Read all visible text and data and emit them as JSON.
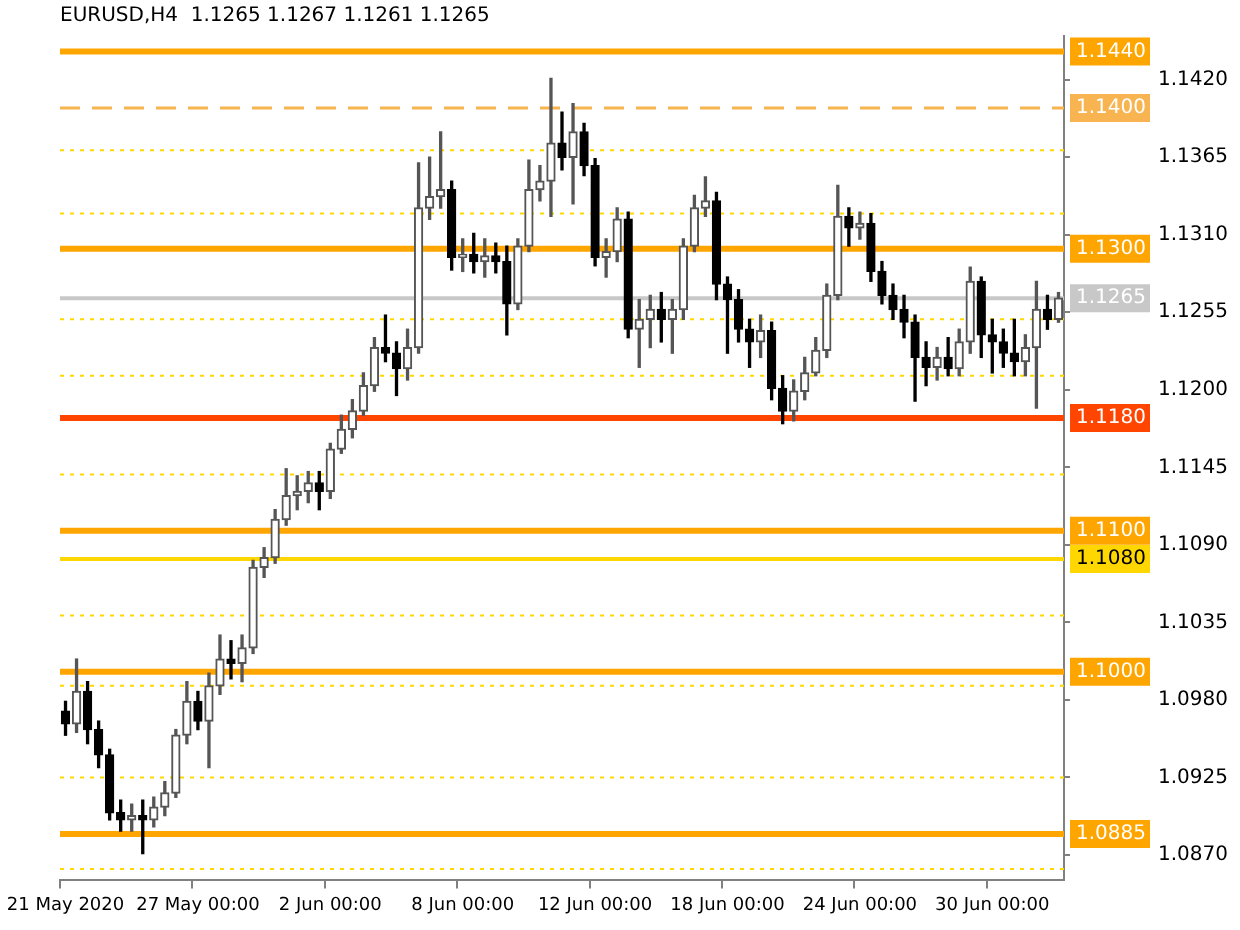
{
  "chart_data": {
    "type": "candlestick",
    "title": "EURUSD,H4  1.1265 1.1267 1.1261 1.1265",
    "categories": [
      "21 May 2020",
      null,
      null,
      null,
      null,
      null,
      null,
      null,
      null,
      null,
      null,
      null,
      "27 May 00:00",
      null,
      null,
      null,
      null,
      null,
      null,
      null,
      null,
      null,
      null,
      null,
      "2 Jun 00:00",
      null,
      null,
      null,
      null,
      null,
      null,
      null,
      null,
      null,
      null,
      null,
      "8 Jun 00:00",
      null,
      null,
      null,
      null,
      null,
      null,
      null,
      null,
      null,
      null,
      null,
      "12 Jun 00:00",
      null,
      null,
      null,
      null,
      null,
      null,
      null,
      null,
      null,
      null,
      null,
      "18 Jun 00:00",
      null,
      null,
      null,
      null,
      null,
      null,
      null,
      null,
      null,
      null,
      null,
      "24 Jun 00:00",
      null,
      null,
      null,
      null,
      null,
      null,
      null,
      null,
      null,
      null,
      null,
      "30 Jun 00:00",
      null,
      null,
      null,
      null,
      null,
      null
    ],
    "ohlc": [
      [
        1.0972,
        1.0979,
        1.0955,
        1.0963
      ],
      [
        1.0963,
        1.1009,
        1.0957,
        1.0986
      ],
      [
        1.0986,
        1.0993,
        1.0949,
        1.0959
      ],
      [
        1.0959,
        1.0965,
        1.0932,
        1.0941
      ],
      [
        1.0941,
        1.0945,
        1.0895,
        1.09
      ],
      [
        1.09,
        1.0909,
        1.0887,
        1.0895
      ],
      [
        1.0895,
        1.0906,
        1.0887,
        1.0898
      ],
      [
        1.0898,
        1.0909,
        1.0871,
        1.0895
      ],
      [
        1.0895,
        1.0911,
        1.089,
        1.0904
      ],
      [
        1.0904,
        1.0922,
        1.0898,
        1.0914
      ],
      [
        1.0914,
        1.0959,
        1.0911,
        1.0955
      ],
      [
        1.0955,
        1.0993,
        1.0949,
        1.0979
      ],
      [
        1.0979,
        1.0986,
        1.0959,
        1.0965
      ],
      [
        1.0965,
        1.0999,
        1.0932,
        1.099
      ],
      [
        1.099,
        1.1026,
        1.0984,
        1.1009
      ],
      [
        1.1009,
        1.1022,
        1.0995,
        1.1006
      ],
      [
        1.1006,
        1.1026,
        1.0993,
        1.1017
      ],
      [
        1.1017,
        1.1079,
        1.1013,
        1.1074
      ],
      [
        1.1074,
        1.1088,
        1.1067,
        1.1081
      ],
      [
        1.1081,
        1.1115,
        1.1077,
        1.1108
      ],
      [
        1.1108,
        1.1144,
        1.1104,
        1.1125
      ],
      [
        1.1125,
        1.1139,
        1.1115,
        1.1128
      ],
      [
        1.1128,
        1.1142,
        1.112,
        1.1134
      ],
      [
        1.1134,
        1.1142,
        1.1115,
        1.1128
      ],
      [
        1.1128,
        1.1162,
        1.1123,
        1.1158
      ],
      [
        1.1158,
        1.1182,
        1.1155,
        1.1172
      ],
      [
        1.1172,
        1.1193,
        1.1166,
        1.1185
      ],
      [
        1.1185,
        1.1212,
        1.1182,
        1.1203
      ],
      [
        1.1203,
        1.1237,
        1.1199,
        1.123
      ],
      [
        1.123,
        1.1253,
        1.122,
        1.1226
      ],
      [
        1.1226,
        1.1234,
        1.1196,
        1.1215
      ],
      [
        1.1215,
        1.1243,
        1.1207,
        1.123
      ],
      [
        1.123,
        1.1361,
        1.1226,
        1.1329
      ],
      [
        1.1329,
        1.1365,
        1.1321,
        1.1337
      ],
      [
        1.1337,
        1.1383,
        1.1329,
        1.1342
      ],
      [
        1.1342,
        1.1348,
        1.1285,
        1.1294
      ],
      [
        1.1294,
        1.1307,
        1.1284,
        1.1296
      ],
      [
        1.1296,
        1.1311,
        1.1283,
        1.1291
      ],
      [
        1.1291,
        1.1307,
        1.128,
        1.1295
      ],
      [
        1.1295,
        1.1304,
        1.1283,
        1.1291
      ],
      [
        1.1291,
        1.1302,
        1.1239,
        1.1261
      ],
      [
        1.1261,
        1.1307,
        1.1257,
        1.1302
      ],
      [
        1.1302,
        1.1363,
        1.1298,
        1.1342
      ],
      [
        1.1342,
        1.1359,
        1.1334,
        1.1348
      ],
      [
        1.1348,
        1.1421,
        1.1323,
        1.1375
      ],
      [
        1.1375,
        1.1397,
        1.1356,
        1.1365
      ],
      [
        1.1365,
        1.1403,
        1.1332,
        1.1383
      ],
      [
        1.1383,
        1.1389,
        1.1352,
        1.1359
      ],
      [
        1.1359,
        1.1364,
        1.1288,
        1.1294
      ],
      [
        1.1294,
        1.1307,
        1.128,
        1.1298
      ],
      [
        1.1298,
        1.1329,
        1.1291,
        1.1321
      ],
      [
        1.1321,
        1.1326,
        1.1237,
        1.1243
      ],
      [
        1.1243,
        1.1264,
        1.1216,
        1.125
      ],
      [
        1.125,
        1.1267,
        1.123,
        1.1257
      ],
      [
        1.1257,
        1.1269,
        1.1234,
        1.125
      ],
      [
        1.125,
        1.1264,
        1.1226,
        1.1257
      ],
      [
        1.1257,
        1.1307,
        1.125,
        1.1302
      ],
      [
        1.1302,
        1.1338,
        1.1298,
        1.1329
      ],
      [
        1.1329,
        1.1351,
        1.1323,
        1.1334
      ],
      [
        1.1334,
        1.134,
        1.1264,
        1.1275
      ],
      [
        1.1275,
        1.128,
        1.1226,
        1.1264
      ],
      [
        1.1264,
        1.1271,
        1.1234,
        1.1243
      ],
      [
        1.1243,
        1.125,
        1.1216,
        1.1234
      ],
      [
        1.1234,
        1.1253,
        1.1223,
        1.1242
      ],
      [
        1.1242,
        1.1248,
        1.1193,
        1.1201
      ],
      [
        1.1201,
        1.121,
        1.1176,
        1.1185
      ],
      [
        1.1185,
        1.1207,
        1.1178,
        1.1199
      ],
      [
        1.1199,
        1.1223,
        1.1193,
        1.1212
      ],
      [
        1.1212,
        1.1237,
        1.121,
        1.1228
      ],
      [
        1.1228,
        1.1275,
        1.1223,
        1.1267
      ],
      [
        1.1267,
        1.1345,
        1.1264,
        1.1323
      ],
      [
        1.1323,
        1.1329,
        1.1302,
        1.1315
      ],
      [
        1.1315,
        1.1326,
        1.1307,
        1.1318
      ],
      [
        1.1318,
        1.1325,
        1.1277,
        1.1284
      ],
      [
        1.1284,
        1.1291,
        1.1261,
        1.1267
      ],
      [
        1.1267,
        1.1275,
        1.125,
        1.1257
      ],
      [
        1.1257,
        1.1267,
        1.1237,
        1.1248
      ],
      [
        1.1248,
        1.1253,
        1.1192,
        1.1223
      ],
      [
        1.1223,
        1.1234,
        1.1203,
        1.1216
      ],
      [
        1.1216,
        1.123,
        1.1207,
        1.1223
      ],
      [
        1.1223,
        1.1237,
        1.121,
        1.1215
      ],
      [
        1.1215,
        1.1243,
        1.121,
        1.1234
      ],
      [
        1.1234,
        1.1287,
        1.1226,
        1.1277
      ],
      [
        1.1277,
        1.128,
        1.1223,
        1.1239
      ],
      [
        1.1239,
        1.125,
        1.1212,
        1.1234
      ],
      [
        1.1234,
        1.1243,
        1.1216,
        1.1226
      ],
      [
        1.1226,
        1.125,
        1.121,
        1.122
      ],
      [
        1.122,
        1.1239,
        1.121,
        1.123
      ],
      [
        1.123,
        1.1277,
        1.1187,
        1.1257
      ],
      [
        1.1257,
        1.1267,
        1.1243,
        1.125
      ],
      [
        1.125,
        1.1269,
        1.1248,
        1.1265
      ]
    ],
    "ylim": [
      1.0852,
      1.1451
    ],
    "yticks": [
      {
        "value": 1.142,
        "label": "1.1420"
      },
      1.1365,
      {
        "value": 1.131,
        "label": "1.1310"
      },
      1.1255,
      {
        "value": 1.12,
        "label": "1.1200"
      },
      1.1145,
      {
        "value": 1.109,
        "label": "1.1090"
      },
      1.1035,
      {
        "value": 1.098,
        "label": "1.0980"
      },
      1.0925,
      {
        "value": 1.087,
        "label": "1.0870"
      }
    ],
    "ref_lines": [
      {
        "axis": "y",
        "value": 1.144,
        "label": "1.1440",
        "color": "#ffa500",
        "line_style": "solid"
      },
      {
        "axis": "y",
        "value": 1.14,
        "label": "1.1400",
        "color": "#f8b450",
        "line_style": "dashed"
      },
      {
        "axis": "y",
        "value": 1.13,
        "label": "1.1300",
        "color": "#ffa500",
        "line_style": "solid"
      },
      {
        "axis": "y",
        "value": 1.1265,
        "label": "1.1265",
        "color": "#c8c8c8",
        "line_style": "solid"
      },
      {
        "axis": "y",
        "value": 1.118,
        "label": "1.1180",
        "color": "#ff4500",
        "line_style": "solid"
      },
      {
        "axis": "y",
        "value": 1.11,
        "label": "1.1100",
        "color": "#ffa500",
        "line_style": "solid"
      },
      {
        "axis": "y",
        "value": 1.108,
        "label": "1.1080",
        "color": "#ffd700",
        "line_style": "solid"
      },
      {
        "axis": "y",
        "value": 1.1,
        "label": "1.1000",
        "color": "#ffa500",
        "line_style": "solid"
      },
      {
        "axis": "y",
        "value": 1.0885,
        "label": "1.0885",
        "color": "#ffa500",
        "line_style": "solid"
      },
      {
        "axis": "y",
        "value": 1.137,
        "color": "#ffd700",
        "line_style": "dotted"
      },
      {
        "axis": "y",
        "value": 1.1325,
        "color": "#ffd700",
        "line_style": "dotted"
      },
      {
        "axis": "y",
        "value": 1.125,
        "color": "#ffd700",
        "line_style": "dotted"
      },
      {
        "axis": "y",
        "value": 1.121,
        "color": "#ffd700",
        "line_style": "dotted"
      },
      {
        "axis": "y",
        "value": 1.114,
        "color": "#ffd700",
        "line_style": "dotted"
      },
      {
        "axis": "y",
        "value": 1.104,
        "color": "#ffd700",
        "line_style": "dotted"
      },
      {
        "axis": "y",
        "value": 1.099,
        "color": "#ffd700",
        "line_style": "dotted"
      },
      {
        "axis": "y",
        "value": 1.0925,
        "color": "#ffd700",
        "line_style": "dotted"
      },
      {
        "axis": "y",
        "value": 1.086,
        "color": "#ffd700",
        "line_style": "dotted"
      }
    ],
    "legend": false
  }
}
